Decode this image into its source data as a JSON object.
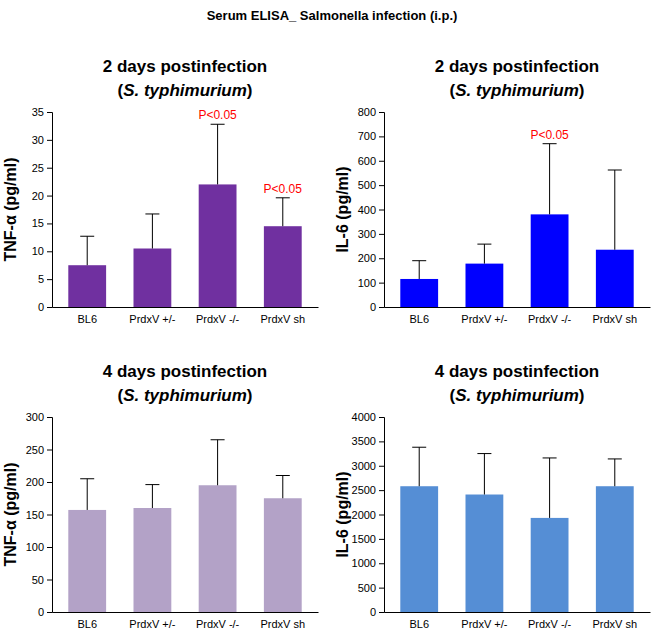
{
  "title": "Serum ELISA_ Salmonella infection (i.p.)",
  "chart_data": [
    {
      "type": "bar",
      "title": "2 days postinfection",
      "subtitle": "(S. typhimurium)",
      "ylabel": "TNF-α (pg/ml)",
      "categories": [
        "BL6",
        "PrdxV +/-",
        "PrdxV -/-",
        "PrdxV sh"
      ],
      "values": [
        7.5,
        10.5,
        22,
        14.5
      ],
      "errors": [
        5.2,
        6.2,
        10.8,
        5.1
      ],
      "color": "#7030a0",
      "ylim": [
        0,
        35
      ],
      "yticks": [
        0,
        5,
        10,
        15,
        20,
        25,
        30,
        35
      ],
      "grid": false,
      "annotations": [
        {
          "text": "P<0.05",
          "category": "PrdxV -/-"
        },
        {
          "text": "P<0.05",
          "category": "PrdxV sh"
        }
      ]
    },
    {
      "type": "bar",
      "title": "2 days postinfection",
      "subtitle": "(S. typhimurium)",
      "ylabel": "IL-6 (pg/ml)",
      "categories": [
        "BL6",
        "PrdxV +/-",
        "PrdxV -/-",
        "PrdxV sh"
      ],
      "values": [
        115,
        178,
        380,
        235
      ],
      "errors": [
        75,
        80,
        290,
        327
      ],
      "color": "#0000ff",
      "ylim": [
        0,
        800
      ],
      "yticks": [
        0,
        100,
        200,
        300,
        400,
        500,
        600,
        700,
        800
      ],
      "grid": false,
      "annotations": [
        {
          "text": "P<0.05",
          "category": "PrdxV -/-"
        }
      ]
    },
    {
      "type": "bar",
      "title": "4 days postinfection",
      "subtitle": "(S. typhimurium)",
      "ylabel": "TNF-α (pg/ml)",
      "categories": [
        "BL6",
        "PrdxV +/-",
        "PrdxV -/-",
        "PrdxV sh"
      ],
      "values": [
        157,
        160,
        195,
        175
      ],
      "errors": [
        48,
        36,
        70,
        35
      ],
      "color": "#b3a2c7",
      "ylim": [
        0,
        300
      ],
      "yticks": [
        0,
        50,
        100,
        150,
        200,
        250,
        300
      ],
      "grid": false
    },
    {
      "type": "bar",
      "title": "4 days postinfection",
      "subtitle": "(S. typhimurium)",
      "ylabel": "IL-6 (pg/ml)",
      "categories": [
        "BL6",
        "PrdxV +/-",
        "PrdxV -/-",
        "PrdxV sh"
      ],
      "values": [
        2580,
        2410,
        1930,
        2580
      ],
      "errors": [
        800,
        840,
        1230,
        560
      ],
      "color": "#558ed5",
      "ylim": [
        0,
        4000
      ],
      "yticks": [
        0,
        500,
        1000,
        1500,
        2000,
        2500,
        3000,
        3500,
        4000
      ],
      "grid": false
    }
  ]
}
